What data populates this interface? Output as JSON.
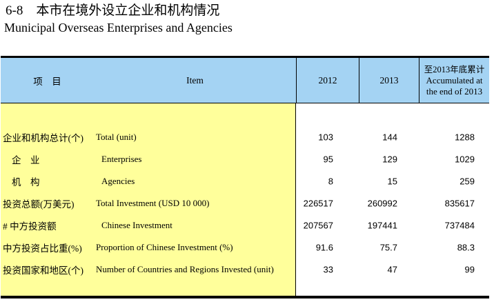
{
  "title": {
    "zh": "6-8　本市在境外设立企业和机构情况",
    "en": "Municipal Overseas Enterprises and Agencies"
  },
  "colors": {
    "header_bg": "#A4D3F3",
    "body_left_bg": "#FFFF9B",
    "border": "#000000"
  },
  "table": {
    "header": {
      "item_zh": "项　目",
      "item_en": "Item",
      "col_2012": "2012",
      "col_2013": "2013",
      "accum_zh": "至2013年底累计",
      "accum_en_line1": "Accumulated at",
      "accum_en_line2": "the end of 2013"
    },
    "rows": [
      {
        "zh": "企业和机构总计(个)",
        "en": "Total (unit)",
        "values": [
          "103",
          "144",
          "1288"
        ],
        "zh_indent": false,
        "en_indent": false
      },
      {
        "zh": "企　业",
        "en": "Enterprises",
        "values": [
          "95",
          "129",
          "1029"
        ],
        "zh_indent": true,
        "en_indent": true
      },
      {
        "zh": "机　构",
        "en": "Agencies",
        "values": [
          "8",
          "15",
          "259"
        ],
        "zh_indent": true,
        "en_indent": true
      },
      {
        "zh": "投资总额(万美元)",
        "en": "Total Investment (USD 10 000)",
        "values": [
          "226517",
          "260992",
          "835617"
        ],
        "zh_indent": false,
        "en_indent": false
      },
      {
        "zh": "# 中方投资额",
        "en": "Chinese Investment",
        "values": [
          "207567",
          "197441",
          "737484"
        ],
        "zh_indent": false,
        "en_indent": true
      },
      {
        "zh": "中方投资占比重(%)",
        "en": "Proportion of Chinese Investment (%)",
        "values": [
          "91.6",
          "75.7",
          "88.3"
        ],
        "zh_indent": false,
        "en_indent": false
      },
      {
        "zh": "投资国家和地区(个)",
        "en": "Number of Countries and Regions Invested (unit)",
        "values": [
          "33",
          "47",
          "99"
        ],
        "zh_indent": false,
        "en_indent": false
      }
    ]
  }
}
